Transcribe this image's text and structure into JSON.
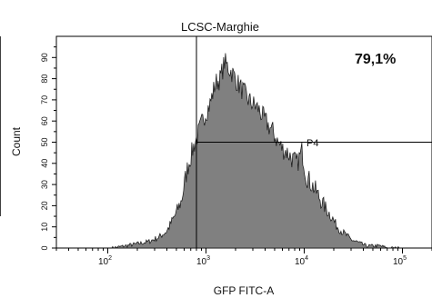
{
  "chart_data": {
    "type": "area",
    "title": "LCSC-Marghie",
    "xlabel": "GFP FITC-A",
    "ylabel": "Count",
    "x_scale": "log",
    "xlim": [
      30,
      200000
    ],
    "ylim": [
      0,
      100
    ],
    "y_ticks": [
      0,
      10,
      20,
      30,
      40,
      50,
      60,
      70,
      80,
      90
    ],
    "x_ticks": [
      {
        "value": 100,
        "base": "10",
        "exp": "2"
      },
      {
        "value": 1000,
        "base": "10",
        "exp": "3"
      },
      {
        "value": 10000,
        "base": "10",
        "exp": "4"
      },
      {
        "value": 100000,
        "base": "10",
        "exp": "5"
      }
    ],
    "gate": {
      "name": "P4",
      "x_min": 800,
      "x_max": 200000,
      "y_level": 50
    },
    "annotation": "79,1%",
    "fill_color": "#808080",
    "series": [
      {
        "x": [
          110,
          150,
          200,
          260,
          330,
          400,
          480,
          560,
          650,
          750,
          850,
          950,
          1100,
          1250,
          1400,
          1550,
          1700,
          1900,
          2100,
          2400,
          2700,
          3000,
          3400,
          3800,
          4300,
          4800,
          5400,
          6000,
          6800,
          7600,
          8500,
          9500,
          10500,
          12000,
          13500,
          15000,
          17000,
          19000,
          21000,
          24000,
          27000,
          30000,
          34000,
          38000,
          43000,
          48000,
          54000,
          60000,
          70000,
          85000,
          100000
        ],
        "y": [
          0,
          1,
          2,
          3,
          5,
          8,
          15,
          22,
          38,
          48,
          55,
          62,
          68,
          78,
          80,
          88,
          85,
          82,
          78,
          74,
          70,
          68,
          66,
          62,
          58,
          55,
          50,
          47,
          45,
          42,
          40,
          46,
          34,
          30,
          26,
          22,
          18,
          15,
          11,
          8,
          6,
          4,
          3,
          2,
          1,
          1,
          1,
          1,
          0,
          0,
          0
        ]
      }
    ]
  }
}
